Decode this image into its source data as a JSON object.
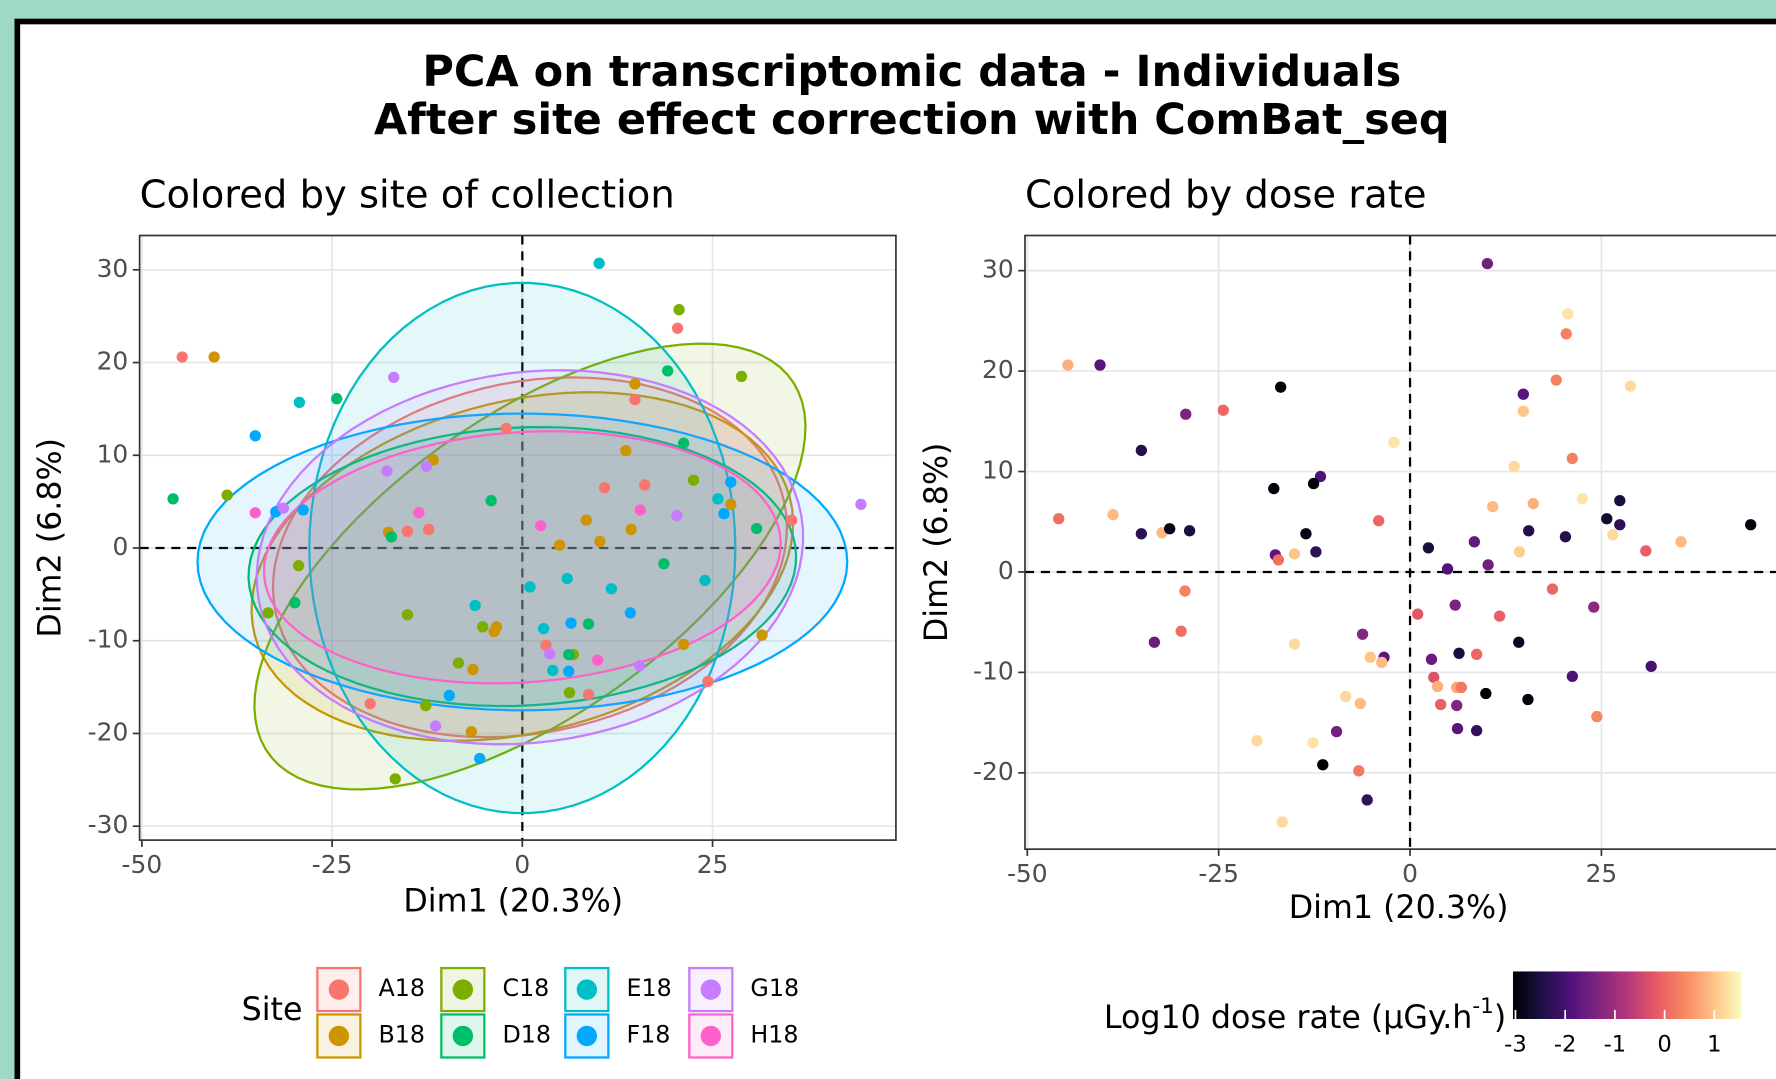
{
  "title": [
    "PCA on transcriptomic data - Individuals",
    "After site effect correction with ComBat_seq"
  ],
  "chart_data": [
    {
      "type": "scatter",
      "title": "Colored by site of collection",
      "xlabel": "Dim1 (20.3%)",
      "ylabel": "Dim2 (6.8%)",
      "xlim": [
        -50.3,
        49.1
      ],
      "ylim": [
        -31.5,
        33.7
      ],
      "xticks": [
        -50,
        -25,
        0,
        25
      ],
      "yticks": [
        -30,
        -20,
        -10,
        0,
        10,
        20,
        30
      ],
      "hline": 0,
      "vline": 0,
      "grid": true,
      "legend_title": "Site",
      "series": [
        {
          "name": "A18",
          "color": "#F8766D",
          "x": [
            20.4,
            14.8,
            16.1,
            10.8,
            35.4,
            3.1,
            24.4,
            8.7,
            -2.1,
            -20,
            -12.3,
            -15.1,
            -44.7
          ],
          "y": [
            23.7,
            16,
            6.8,
            6.5,
            3,
            -10.5,
            -14.4,
            -15.8,
            12.9,
            -16.8,
            2,
            1.8,
            20.6
          ],
          "ellipse": {
            "center": [
              1,
              -1
            ],
            "radii": [
              34,
              19
            ],
            "angle": 8
          }
        },
        {
          "name": "B18",
          "color": "#CD9600",
          "x": [
            14.8,
            13.6,
            27.4,
            8.4,
            14.3,
            10.2,
            4.9,
            31.5,
            21.2,
            -3.4,
            -3.7,
            -6.5,
            -6.7,
            -11.7,
            -17.6,
            -40.5
          ],
          "y": [
            17.7,
            10.5,
            4.7,
            3,
            2,
            0.7,
            0.3,
            -9.4,
            -10.4,
            -8.5,
            -9,
            -13.1,
            -19.8,
            9.5,
            1.7,
            20.6
          ],
          "ellipse": {
            "center": [
              0,
              -2
            ],
            "radii": [
              36,
              18
            ],
            "angle": 10
          }
        },
        {
          "name": "C18",
          "color": "#7CAE00",
          "x": [
            20.6,
            28.8,
            22.5,
            6.7,
            6.2,
            -5.2,
            -8.4,
            -12.7,
            -15.1,
            -16.7,
            -38.8,
            -29.4,
            -33.4
          ],
          "y": [
            25.7,
            18.5,
            7.3,
            -11.5,
            -15.6,
            -8.5,
            -12.4,
            -17,
            -7.2,
            -24.9,
            5.7,
            -1.9,
            -7
          ],
          "ellipse": {
            "center": [
              1,
              -2
            ],
            "radii": [
              40,
              17
            ],
            "angle": 28
          }
        },
        {
          "name": "D18",
          "color": "#00BE67",
          "x": [
            19.1,
            21.2,
            30.8,
            18.6,
            8.7,
            6.1,
            -4.1,
            -17.2,
            -24.4,
            -45.9,
            -29.9
          ],
          "y": [
            19.1,
            11.3,
            2.1,
            -1.7,
            -8.2,
            -11.5,
            5.1,
            1.2,
            16.1,
            5.3,
            -5.9
          ],
          "ellipse": {
            "center": [
              0,
              -2
            ],
            "radii": [
              36,
              15
            ],
            "angle": 2
          }
        },
        {
          "name": "E18",
          "color": "#00BFC4",
          "x": [
            10.1,
            25.7,
            24,
            5.9,
            1,
            11.7,
            2.8,
            4,
            -6.2,
            -29.3
          ],
          "y": [
            30.7,
            5.3,
            -3.5,
            -3.3,
            -4.2,
            -4.4,
            -8.7,
            -13.2,
            -6.2,
            15.7
          ],
          "ellipse": {
            "center": [
              0,
              0
            ],
            "radii": [
              28,
              28.6
            ],
            "angle": 0
          }
        },
        {
          "name": "F18",
          "color": "#00A9FF",
          "x": [
            27.4,
            26.5,
            14.2,
            6.4,
            6.1,
            -9.6,
            -5.6,
            -35.1,
            -32.4,
            -28.8
          ],
          "y": [
            7.1,
            3.7,
            -7,
            -8.1,
            -13.3,
            -15.9,
            -22.7,
            12.1,
            3.9,
            4.1
          ],
          "ellipse": {
            "center": [
              0,
              -1.5
            ],
            "radii": [
              42.7,
              16
            ],
            "angle": 0
          }
        },
        {
          "name": "G18",
          "color": "#C77CFF",
          "x": [
            44.5,
            20.3,
            3.6,
            15.4,
            -11.4,
            -16.9,
            -12.6,
            -17.8,
            -31.4
          ],
          "y": [
            4.7,
            3.5,
            -11.4,
            -12.7,
            -19.2,
            18.4,
            8.8,
            8.3,
            4.3
          ],
          "ellipse": {
            "center": [
              1,
              -1
            ],
            "radii": [
              36,
              20
            ],
            "angle": 5
          }
        },
        {
          "name": "H18",
          "color": "#FF61CC",
          "x": [
            15.5,
            2.4,
            9.9,
            -13.6,
            -35.1
          ],
          "y": [
            4.1,
            2.4,
            -12.1,
            3.8,
            3.8
          ],
          "ellipse": {
            "center": [
              0,
              -1
            ],
            "radii": [
              34,
              13.5
            ],
            "angle": 3
          }
        }
      ]
    },
    {
      "type": "scatter",
      "title": "Colored by dose rate",
      "xlabel": "Dim1 (20.3%)",
      "ylabel": "Dim2 (6.8%)",
      "xlim": [
        -50.3,
        48.5
      ],
      "ylim": [
        -27.6,
        33.5
      ],
      "xticks": [
        -50,
        -25,
        0,
        25
      ],
      "yticks": [
        -20,
        -10,
        0,
        10,
        20,
        30
      ],
      "hline": 0,
      "vline": 0,
      "grid": true,
      "colormap": "magma",
      "legend_title": [
        "Log10 dose rate (µGy.h",
        "-1",
        ")"
      ],
      "clim": [
        -3.05,
        1.55
      ],
      "cticks": [
        -3,
        -2,
        -1,
        0,
        1
      ],
      "x": [
        10.1,
        20.6,
        20.4,
        19.1,
        14.8,
        14.8,
        28.8,
        21.2,
        13.6,
        16.1,
        10.8,
        22.5,
        27.4,
        25.7,
        27.4,
        26.5,
        30.8,
        35.4,
        44.5,
        15.5,
        20.3,
        8.4,
        14.3,
        2.4,
        10.2,
        4.9,
        18.6,
        24,
        5.9,
        1,
        11.7,
        14.2,
        6.4,
        8.7,
        2.8,
        31.5,
        21.2,
        3.1,
        3.6,
        6.1,
        6.7,
        9.9,
        15.4,
        4,
        6.1,
        24.4,
        6.2,
        8.7,
        -2.1,
        -4.1,
        -6.2,
        -3.4,
        -5.2,
        -3.7,
        -8.4,
        -6.5,
        -9.6,
        -12.7,
        -20,
        -15.1,
        -11.4,
        -6.7,
        -5.6,
        -16.7,
        -16.9,
        -11.7,
        -12.6,
        -17.8,
        -13.6,
        -12.3,
        -15.1,
        -17.6,
        -17.2,
        -24.4,
        -29.3,
        -35.1,
        -40.5,
        -44.7,
        -45.9,
        -38.8,
        -35.1,
        -32.4,
        -31.4,
        -28.8,
        -29.4,
        -29.9,
        -33.4
      ],
      "y": [
        30.7,
        25.7,
        23.7,
        19.1,
        17.7,
        16,
        18.5,
        11.3,
        10.5,
        6.8,
        6.5,
        7.3,
        7.1,
        5.3,
        4.7,
        3.7,
        2.1,
        3,
        4.7,
        4.1,
        3.5,
        3,
        2,
        2.4,
        0.7,
        0.3,
        -1.7,
        -3.5,
        -3.3,
        -4.2,
        -4.4,
        -7,
        -8.1,
        -8.2,
        -8.7,
        -9.4,
        -10.4,
        -10.5,
        -11.4,
        -11.5,
        -11.5,
        -12.1,
        -12.7,
        -13.2,
        -13.3,
        -14.4,
        -15.6,
        -15.8,
        12.9,
        5.1,
        -6.2,
        -8.5,
        -8.5,
        -9,
        -12.4,
        -13.1,
        -15.9,
        -17,
        -16.8,
        -7.2,
        -19.2,
        -19.8,
        -22.7,
        -24.9,
        18.4,
        9.5,
        8.8,
        8.3,
        3.8,
        2,
        1.8,
        1.7,
        1.2,
        16.1,
        15.7,
        12.1,
        20.6,
        20.6,
        5.3,
        5.7,
        3.8,
        3.9,
        4.3,
        4.1,
        -1.9,
        -5.9,
        -7
      ],
      "color_values": [
        -1.5,
        1.3,
        0.3,
        0.3,
        -1.8,
        1,
        1.2,
        0.3,
        1.2,
        0.8,
        0.9,
        1.3,
        -2.5,
        -2.7,
        -2.3,
        1.2,
        -0.1,
        0.9,
        -3,
        -2.4,
        -2.4,
        -1.7,
        1.1,
        -2.5,
        -1.5,
        -1.9,
        0,
        -1.2,
        -1.4,
        -0.2,
        -0.1,
        -2.8,
        -2.5,
        0,
        -1.6,
        -2,
        -1.9,
        -0.3,
        0.8,
        0.7,
        0.2,
        -3,
        -3,
        -0.1,
        -1.3,
        0.4,
        -1.8,
        -2.2,
        1.3,
        0,
        -1.3,
        -1.8,
        1,
        0.9,
        1.2,
        0.9,
        -1.5,
        1.3,
        1.2,
        1.2,
        -3,
        0.2,
        -2.2,
        1.2,
        -3,
        -1.9,
        -3,
        -3,
        -2.9,
        -2.3,
        1,
        -1.8,
        0.1,
        0,
        -1.4,
        -2.4,
        -1.8,
        0.8,
        0.1,
        0.9,
        -2.3,
        0.9,
        -2.9,
        -2.5,
        0.3,
        0.1,
        -1.6
      ]
    }
  ]
}
